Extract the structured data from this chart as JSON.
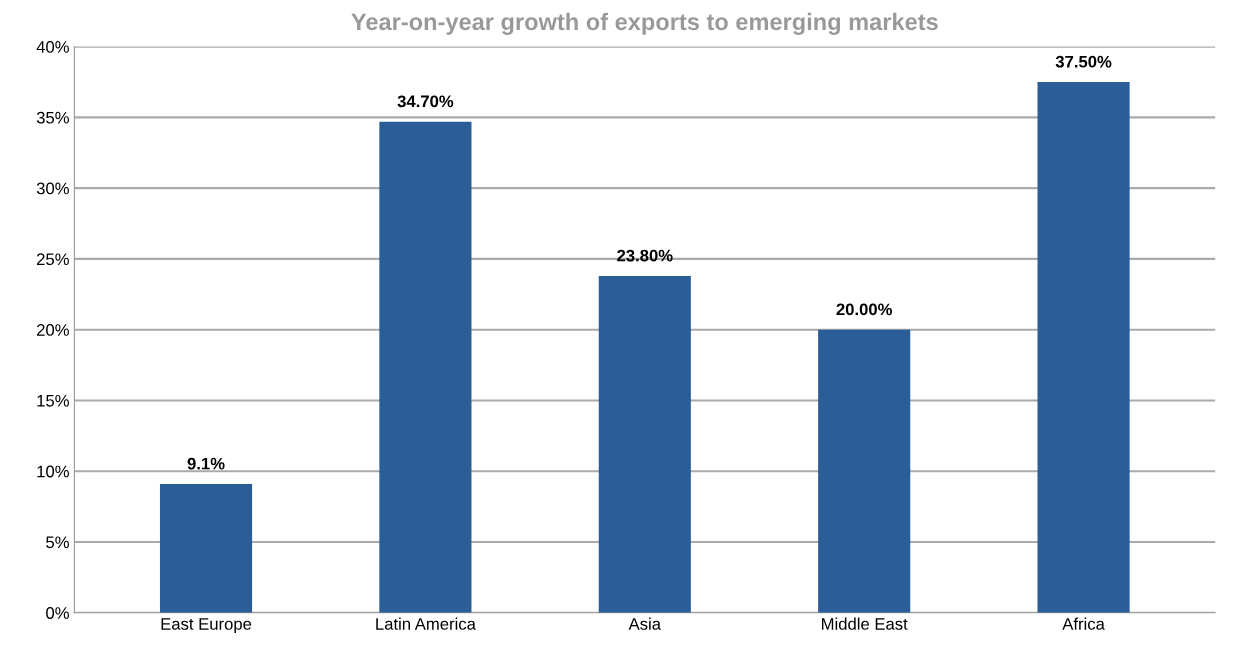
{
  "chart_data": {
    "type": "bar",
    "title": "Year-on-year growth of exports to emerging markets",
    "categories": [
      "East Europe",
      "Latin America",
      "Asia",
      "Middle East",
      "Africa"
    ],
    "values": [
      9.1,
      34.7,
      23.8,
      20.0,
      37.5
    ],
    "value_labels": [
      "9.1%",
      "34.70%",
      "23.80%",
      "20.00%",
      "37.50%"
    ],
    "color": "#2b5d97",
    "ylim": [
      0,
      40
    ],
    "yticks": [
      {
        "value": 0,
        "label": "0%"
      },
      {
        "value": 5,
        "label": "5%"
      },
      {
        "value": 10,
        "label": "10%"
      },
      {
        "value": 15,
        "label": "15%"
      },
      {
        "value": 20,
        "label": "20%"
      },
      {
        "value": 25,
        "label": "25%"
      },
      {
        "value": 30,
        "label": "30%"
      },
      {
        "value": 35,
        "label": "35%"
      },
      {
        "value": 40,
        "label": "40%"
      }
    ],
    "grid": "y"
  }
}
